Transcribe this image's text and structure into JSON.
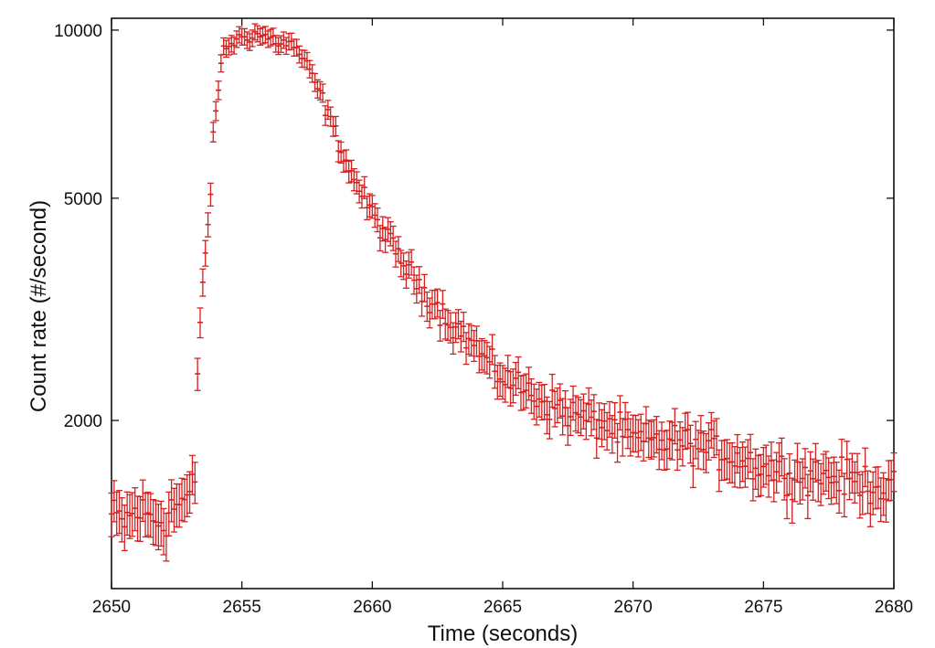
{
  "chart_data": {
    "type": "scatter",
    "title": "",
    "xlabel": "Time (seconds)",
    "ylabel": "Count rate (#/second)",
    "xlim": [
      2650,
      2680
    ],
    "ylim": [
      1000,
      10500
    ],
    "yscale": "log",
    "grid": false,
    "legend": "none",
    "marker_color": "#d42020",
    "error_bars": true,
    "xticks": [
      {
        "value": 2650,
        "label": "2650"
      },
      {
        "value": 2655,
        "label": "2655"
      },
      {
        "value": 2660,
        "label": "2660"
      },
      {
        "value": 2665,
        "label": "2665"
      },
      {
        "value": 2670,
        "label": "2670"
      },
      {
        "value": 2675,
        "label": "2675"
      },
      {
        "value": 2680,
        "label": "2680"
      }
    ],
    "yticks": [
      {
        "value": 2000,
        "label": "2000"
      },
      {
        "value": 5000,
        "label": "5000"
      },
      {
        "value": 10000,
        "label": "10000"
      }
    ],
    "anchors": [
      [
        2650.0,
        1350
      ],
      [
        2650.5,
        1320
      ],
      [
        2651.0,
        1380
      ],
      [
        2651.5,
        1340
      ],
      [
        2652.0,
        1320
      ],
      [
        2652.3,
        1400
      ],
      [
        2652.6,
        1420
      ],
      [
        2653.0,
        1460
      ],
      [
        2653.2,
        1560
      ],
      [
        2653.35,
        2850
      ],
      [
        2653.55,
        3800
      ],
      [
        2653.75,
        4700
      ],
      [
        2653.9,
        6300
      ],
      [
        2654.1,
        8000
      ],
      [
        2654.3,
        9200
      ],
      [
        2654.6,
        9500
      ],
      [
        2655.0,
        9700
      ],
      [
        2655.5,
        9850
      ],
      [
        2656.0,
        9700
      ],
      [
        2656.5,
        9500
      ],
      [
        2657.0,
        9400
      ],
      [
        2657.5,
        8600
      ],
      [
        2658.0,
        7700
      ],
      [
        2658.5,
        6700
      ],
      [
        2659.0,
        5800
      ],
      [
        2659.5,
        5200
      ],
      [
        2660.0,
        4700
      ],
      [
        2660.5,
        4300
      ],
      [
        2661.0,
        3950
      ],
      [
        2661.5,
        3650
      ],
      [
        2662.0,
        3400
      ],
      [
        2662.5,
        3200
      ],
      [
        2663.0,
        3000
      ],
      [
        2663.5,
        2850
      ],
      [
        2664.0,
        2700
      ],
      [
        2664.5,
        2500
      ],
      [
        2665.0,
        2400
      ],
      [
        2666.0,
        2250
      ],
      [
        2667.0,
        2120
      ],
      [
        2668.0,
        2030
      ],
      [
        2669.0,
        1970
      ],
      [
        2670.0,
        1850
      ],
      [
        2671.0,
        1830
      ],
      [
        2672.0,
        1830
      ],
      [
        2673.0,
        1780
      ],
      [
        2674.0,
        1720
      ],
      [
        2675.0,
        1650
      ],
      [
        2676.0,
        1620
      ],
      [
        2677.0,
        1600
      ],
      [
        2678.0,
        1580
      ],
      [
        2679.0,
        1550
      ],
      [
        2680.0,
        1500
      ]
    ]
  }
}
